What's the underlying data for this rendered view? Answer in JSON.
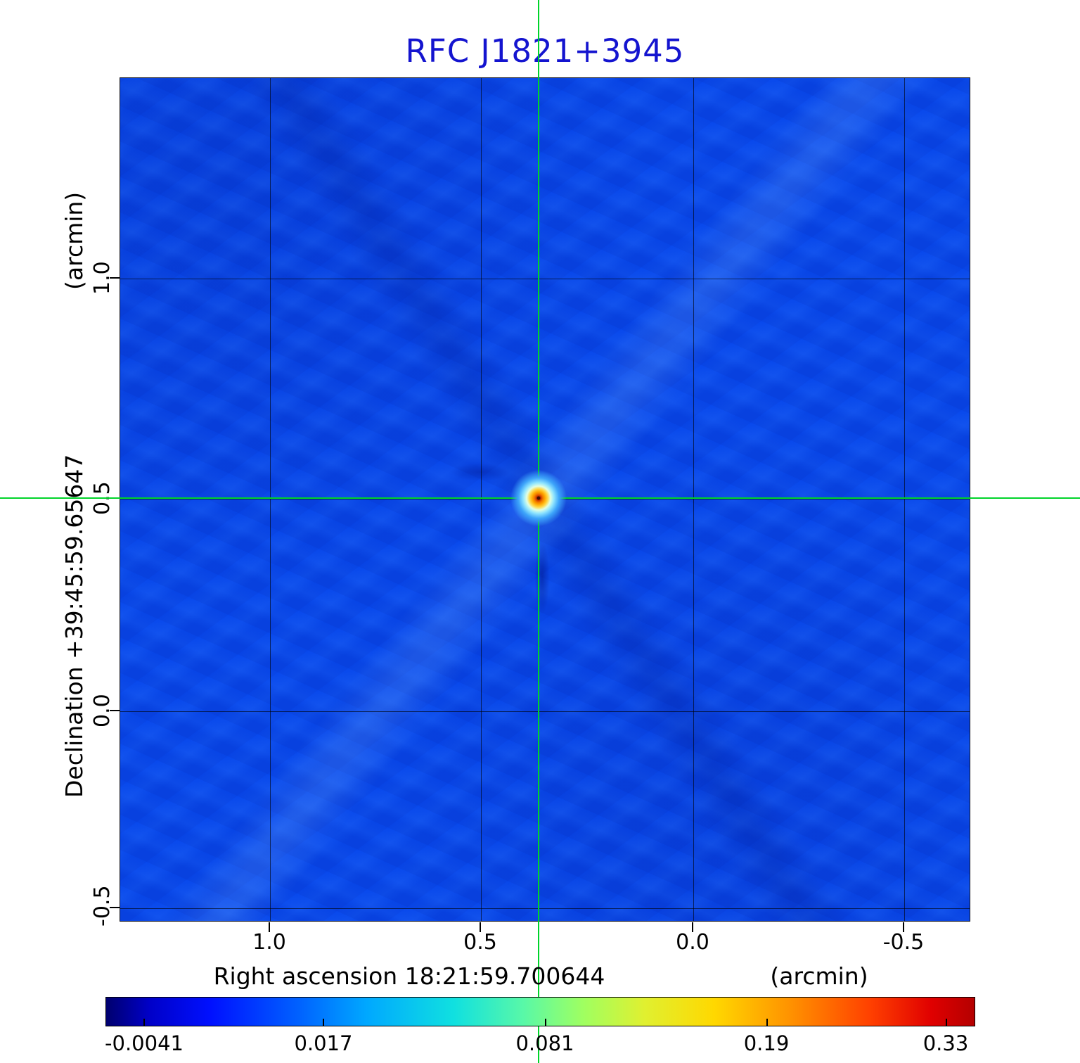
{
  "title": "RFC J1821+3945",
  "axes": {
    "ylabel": "Declination  +39:45:59.65647",
    "ylabel_unit": "(arcmin)",
    "xlabel": "Right ascension  18:21:59.700644",
    "xlabel_unit": "(arcmin)",
    "y_ticks": [
      "1.0",
      "0.5",
      "0.0",
      "-0.5"
    ],
    "x_ticks": [
      "1.0",
      "0.5",
      "0.0",
      "-0.5"
    ]
  },
  "colorbar": {
    "tick_labels": [
      "-0.0041",
      "0.017",
      "0.081",
      "0.19",
      "0.33"
    ]
  },
  "chart_data": {
    "type": "heatmap",
    "title": "RFC J1821+3945",
    "xlabel": "Right ascension 18:21:59.700644 (arcmin)",
    "ylabel": "Declination +39:45:59.65647 (arcmin)",
    "x_tick_values_arcmin": [
      1.0,
      0.5,
      0.0,
      -0.5
    ],
    "y_tick_values_arcmin": [
      1.0,
      0.5,
      0.0,
      -0.5
    ],
    "x_range_arcmin": [
      1.36,
      -0.66
    ],
    "y_range_arcmin": [
      -0.53,
      1.48
    ],
    "grid": true,
    "legend": false,
    "colormap": "jet",
    "colorbar_tick_values": [
      -0.0041,
      0.017,
      0.081,
      0.19,
      0.33
    ],
    "colorbar_position": "bottom",
    "peak_source": {
      "x_arcmin": 0.36,
      "y_arcmin": 0.5,
      "peak_value_approx": 0.33
    },
    "crosshair": {
      "x_arcmin": 0.36,
      "y_arcmin": 0.5,
      "color": "#00d42a"
    },
    "colors": {
      "title_blue": "#1414cf",
      "field_blue": "#0848ec"
    }
  }
}
